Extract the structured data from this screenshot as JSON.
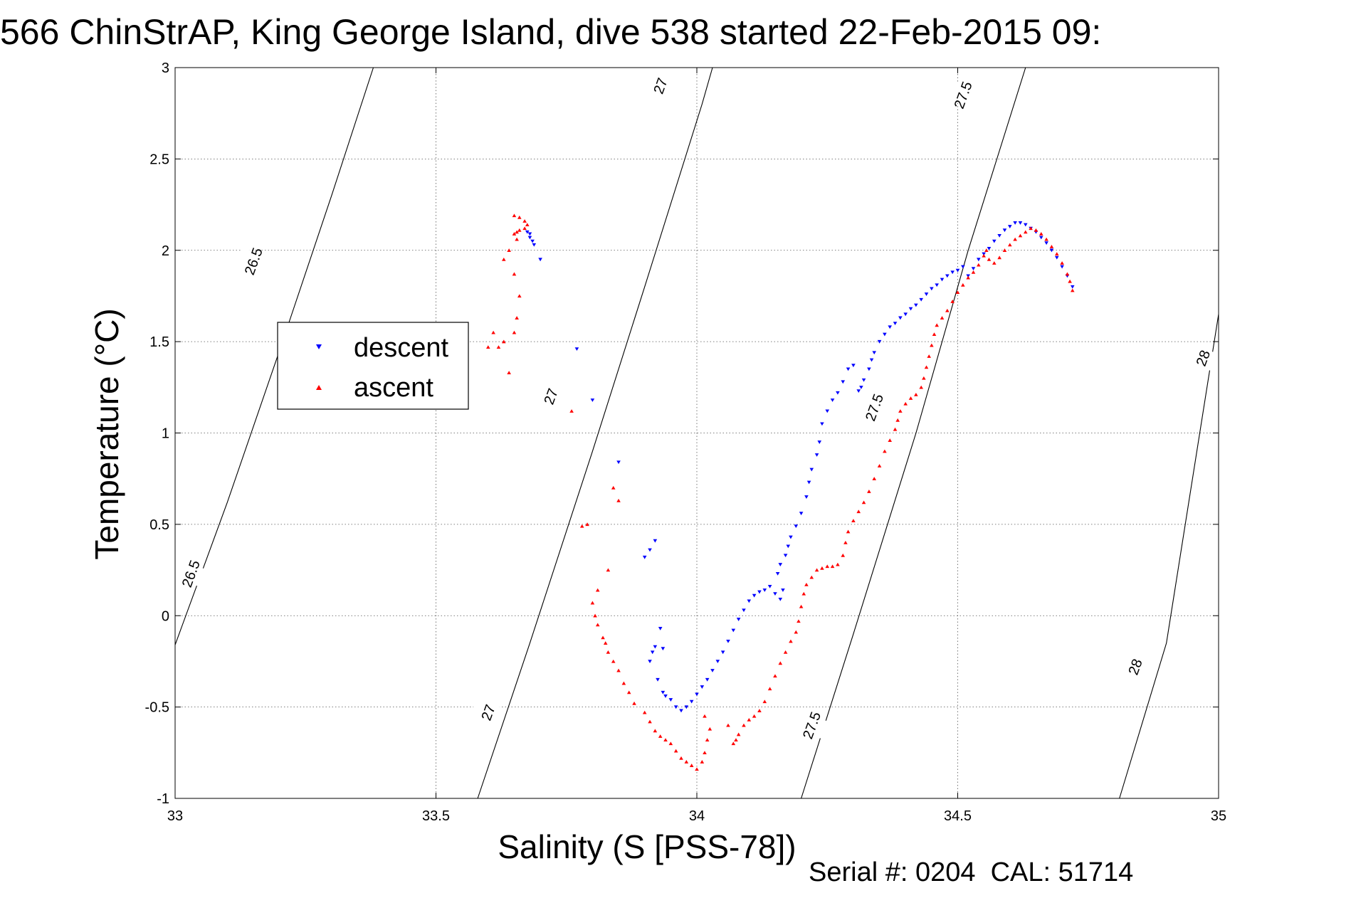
{
  "chart_data": {
    "type": "scatter",
    "title": "566 ChinStrAP, King George Island, dive 538 started 22-Feb-2015 09:",
    "xlabel": "Salinity (S [PSS-78])",
    "ylabel": "Temperature (°C)",
    "xlim": [
      33,
      35
    ],
    "ylim": [
      -1,
      3
    ],
    "x_ticks": [
      33,
      33.5,
      34,
      34.5,
      35
    ],
    "x_tick_labels": [
      "33",
      "33.5",
      "34",
      "34.5",
      "35"
    ],
    "y_ticks": [
      -1,
      -0.5,
      0,
      0.5,
      1,
      1.5,
      2,
      2.5,
      3
    ],
    "y_tick_labels": [
      "-1",
      "-0.5",
      "0",
      "0.5",
      "1",
      "1.5",
      "2",
      "2.5",
      "3"
    ],
    "grid": true,
    "legend_placement": "left",
    "footer": "Serial #: 0204  CAL: 51714",
    "contours": [
      {
        "level": "26.5",
        "points": [
          [
            33.0,
            -0.16
          ],
          [
            33.1,
            0.62
          ],
          [
            33.2,
            1.45
          ],
          [
            33.3,
            2.3
          ],
          [
            33.38,
            3.0
          ]
        ]
      },
      {
        "level": "27",
        "points": [
          [
            33.58,
            -1.0
          ],
          [
            33.68,
            -0.15
          ],
          [
            33.8,
            0.9
          ],
          [
            33.9,
            1.8
          ],
          [
            34.01,
            2.8
          ],
          [
            34.03,
            3.0
          ]
        ]
      },
      {
        "level": "27.5",
        "points": [
          [
            34.2,
            -1.0
          ],
          [
            34.3,
            -0.1
          ],
          [
            34.42,
            1.0
          ],
          [
            34.52,
            2.0
          ],
          [
            34.63,
            3.0
          ]
        ]
      },
      {
        "level": "28",
        "points": [
          [
            34.81,
            -1.0
          ],
          [
            34.9,
            -0.15
          ],
          [
            35.0,
            1.65
          ]
        ]
      }
    ],
    "contour_labels": [
      {
        "text": "26.5",
        "x": 33.15,
        "y": 1.94
      },
      {
        "text": "26.5",
        "x": 33.03,
        "y": 0.23
      },
      {
        "text": "27",
        "x": 33.93,
        "y": 2.9
      },
      {
        "text": "27",
        "x": 33.72,
        "y": 1.2
      },
      {
        "text": "27",
        "x": 33.6,
        "y": -0.53
      },
      {
        "text": "27.5",
        "x": 34.51,
        "y": 2.85
      },
      {
        "text": "27.5",
        "x": 34.34,
        "y": 1.14
      },
      {
        "text": "27.5",
        "x": 34.22,
        "y": -0.6
      },
      {
        "text": "28",
        "x": 34.97,
        "y": 1.41
      },
      {
        "text": "28",
        "x": 34.84,
        "y": -0.28
      }
    ],
    "series": [
      {
        "name": "descent",
        "color": "#0000ff",
        "marker": "triangle-down",
        "points": [
          [
            33.68,
            2.09
          ],
          [
            33.675,
            2.1
          ],
          [
            33.68,
            2.07
          ],
          [
            33.685,
            2.05
          ],
          [
            33.688,
            2.03
          ],
          [
            33.7,
            1.95
          ],
          [
            33.77,
            1.46
          ],
          [
            33.8,
            1.18
          ],
          [
            33.85,
            0.84
          ],
          [
            33.92,
            0.41
          ],
          [
            33.91,
            0.36
          ],
          [
            33.9,
            0.32
          ],
          [
            33.93,
            -0.07
          ],
          [
            33.92,
            -0.17
          ],
          [
            33.935,
            -0.18
          ],
          [
            33.915,
            -0.2
          ],
          [
            33.91,
            -0.25
          ],
          [
            33.925,
            -0.35
          ],
          [
            33.935,
            -0.42
          ],
          [
            33.94,
            -0.44
          ],
          [
            33.95,
            -0.46
          ],
          [
            33.96,
            -0.5
          ],
          [
            33.97,
            -0.52
          ],
          [
            33.98,
            -0.5
          ],
          [
            33.99,
            -0.47
          ],
          [
            34.0,
            -0.43
          ],
          [
            34.01,
            -0.39
          ],
          [
            34.02,
            -0.35
          ],
          [
            34.03,
            -0.3
          ],
          [
            34.04,
            -0.25
          ],
          [
            34.05,
            -0.2
          ],
          [
            34.06,
            -0.14
          ],
          [
            34.07,
            -0.08
          ],
          [
            34.08,
            -0.02
          ],
          [
            34.09,
            0.03
          ],
          [
            34.1,
            0.08
          ],
          [
            34.11,
            0.11
          ],
          [
            34.12,
            0.13
          ],
          [
            34.13,
            0.14
          ],
          [
            34.14,
            0.16
          ],
          [
            34.15,
            0.12
          ],
          [
            34.16,
            0.09
          ],
          [
            34.165,
            0.14
          ],
          [
            34.155,
            0.23
          ],
          [
            34.16,
            0.28
          ],
          [
            34.17,
            0.33
          ],
          [
            34.175,
            0.38
          ],
          [
            34.18,
            0.43
          ],
          [
            34.19,
            0.49
          ],
          [
            34.2,
            0.56
          ],
          [
            34.21,
            0.65
          ],
          [
            34.215,
            0.73
          ],
          [
            34.22,
            0.8
          ],
          [
            34.23,
            0.88
          ],
          [
            34.235,
            0.95
          ],
          [
            34.24,
            1.05
          ],
          [
            34.25,
            1.12
          ],
          [
            34.26,
            1.18
          ],
          [
            34.27,
            1.22
          ],
          [
            34.28,
            1.28
          ],
          [
            34.29,
            1.35
          ],
          [
            34.3,
            1.37
          ],
          [
            34.31,
            1.23
          ],
          [
            34.315,
            1.25
          ],
          [
            34.32,
            1.29
          ],
          [
            34.33,
            1.35
          ],
          [
            34.335,
            1.4
          ],
          [
            34.34,
            1.44
          ],
          [
            34.35,
            1.5
          ],
          [
            34.36,
            1.54
          ],
          [
            34.37,
            1.58
          ],
          [
            34.38,
            1.6
          ],
          [
            34.39,
            1.63
          ],
          [
            34.4,
            1.65
          ],
          [
            34.41,
            1.68
          ],
          [
            34.42,
            1.7
          ],
          [
            34.43,
            1.73
          ],
          [
            34.44,
            1.76
          ],
          [
            34.45,
            1.79
          ],
          [
            34.46,
            1.81
          ],
          [
            34.47,
            1.84
          ],
          [
            34.48,
            1.86
          ],
          [
            34.49,
            1.88
          ],
          [
            34.5,
            1.89
          ],
          [
            34.51,
            1.91
          ],
          [
            34.52,
            1.86
          ],
          [
            34.53,
            1.9
          ],
          [
            34.54,
            1.95
          ],
          [
            34.55,
            1.98
          ],
          [
            34.56,
            2.01
          ],
          [
            34.57,
            2.05
          ],
          [
            34.58,
            2.08
          ],
          [
            34.59,
            2.11
          ],
          [
            34.6,
            2.13
          ],
          [
            34.61,
            2.15
          ],
          [
            34.62,
            2.15
          ],
          [
            34.63,
            2.14
          ],
          [
            34.64,
            2.12
          ],
          [
            34.65,
            2.1
          ],
          [
            34.66,
            2.07
          ],
          [
            34.67,
            2.04
          ],
          [
            34.68,
            2.0
          ],
          [
            34.69,
            1.96
          ],
          [
            34.7,
            1.91
          ],
          [
            34.71,
            1.86
          ],
          [
            34.72,
            1.8
          ]
        ]
      },
      {
        "name": "ascent",
        "color": "#ff0000",
        "marker": "triangle-up",
        "points": [
          [
            33.65,
            2.19
          ],
          [
            33.66,
            2.18
          ],
          [
            33.67,
            2.16
          ],
          [
            33.675,
            2.14
          ],
          [
            33.67,
            2.12
          ],
          [
            33.66,
            2.11
          ],
          [
            33.655,
            2.1
          ],
          [
            33.65,
            2.09
          ],
          [
            33.655,
            2.06
          ],
          [
            33.64,
            2.0
          ],
          [
            33.63,
            1.95
          ],
          [
            33.65,
            1.87
          ],
          [
            33.66,
            1.75
          ],
          [
            33.655,
            1.63
          ],
          [
            33.65,
            1.55
          ],
          [
            33.63,
            1.5
          ],
          [
            33.62,
            1.47
          ],
          [
            33.61,
            1.55
          ],
          [
            33.6,
            1.47
          ],
          [
            33.64,
            1.33
          ],
          [
            33.76,
            1.12
          ],
          [
            33.78,
            0.49
          ],
          [
            33.79,
            0.5
          ],
          [
            33.84,
            0.7
          ],
          [
            33.85,
            0.63
          ],
          [
            33.83,
            0.25
          ],
          [
            33.81,
            0.14
          ],
          [
            33.8,
            0.07
          ],
          [
            33.805,
            0.0
          ],
          [
            33.81,
            -0.05
          ],
          [
            33.82,
            -0.12
          ],
          [
            33.825,
            -0.15
          ],
          [
            33.83,
            -0.2
          ],
          [
            33.84,
            -0.25
          ],
          [
            33.85,
            -0.3
          ],
          [
            33.86,
            -0.37
          ],
          [
            33.87,
            -0.42
          ],
          [
            33.88,
            -0.48
          ],
          [
            33.9,
            -0.53
          ],
          [
            33.91,
            -0.58
          ],
          [
            33.92,
            -0.63
          ],
          [
            33.93,
            -0.66
          ],
          [
            33.94,
            -0.68
          ],
          [
            33.95,
            -0.7
          ],
          [
            33.96,
            -0.74
          ],
          [
            33.97,
            -0.78
          ],
          [
            33.98,
            -0.8
          ],
          [
            33.99,
            -0.82
          ],
          [
            34.0,
            -0.84
          ],
          [
            34.01,
            -0.8
          ],
          [
            34.015,
            -0.75
          ],
          [
            34.02,
            -0.68
          ],
          [
            34.025,
            -0.62
          ],
          [
            34.015,
            -0.55
          ],
          [
            34.06,
            -0.6
          ],
          [
            34.07,
            -0.7
          ],
          [
            34.075,
            -0.68
          ],
          [
            34.08,
            -0.65
          ],
          [
            34.09,
            -0.6
          ],
          [
            34.1,
            -0.57
          ],
          [
            34.11,
            -0.55
          ],
          [
            34.12,
            -0.52
          ],
          [
            34.13,
            -0.47
          ],
          [
            34.14,
            -0.4
          ],
          [
            34.15,
            -0.33
          ],
          [
            34.16,
            -0.26
          ],
          [
            34.17,
            -0.2
          ],
          [
            34.18,
            -0.14
          ],
          [
            34.19,
            -0.09
          ],
          [
            34.195,
            -0.03
          ],
          [
            34.2,
            0.05
          ],
          [
            34.205,
            0.12
          ],
          [
            34.21,
            0.17
          ],
          [
            34.22,
            0.21
          ],
          [
            34.23,
            0.25
          ],
          [
            34.24,
            0.26
          ],
          [
            34.25,
            0.27
          ],
          [
            34.26,
            0.27
          ],
          [
            34.27,
            0.28
          ],
          [
            34.28,
            0.33
          ],
          [
            34.285,
            0.4
          ],
          [
            34.29,
            0.46
          ],
          [
            34.3,
            0.52
          ],
          [
            34.31,
            0.57
          ],
          [
            34.32,
            0.62
          ],
          [
            34.33,
            0.68
          ],
          [
            34.34,
            0.75
          ],
          [
            34.35,
            0.82
          ],
          [
            34.36,
            0.9
          ],
          [
            34.37,
            0.96
          ],
          [
            34.38,
            1.02
          ],
          [
            34.385,
            1.07
          ],
          [
            34.39,
            1.12
          ],
          [
            34.4,
            1.16
          ],
          [
            34.41,
            1.19
          ],
          [
            34.42,
            1.21
          ],
          [
            34.43,
            1.25
          ],
          [
            34.435,
            1.3
          ],
          [
            34.44,
            1.36
          ],
          [
            34.445,
            1.42
          ],
          [
            34.45,
            1.48
          ],
          [
            34.455,
            1.54
          ],
          [
            34.46,
            1.59
          ],
          [
            34.47,
            1.63
          ],
          [
            34.48,
            1.67
          ],
          [
            34.49,
            1.72
          ],
          [
            34.5,
            1.77
          ],
          [
            34.51,
            1.81
          ],
          [
            34.52,
            1.85
          ],
          [
            34.53,
            1.88
          ],
          [
            34.54,
            1.92
          ],
          [
            34.55,
            1.97
          ],
          [
            34.555,
            2.0
          ],
          [
            34.56,
            1.95
          ],
          [
            34.57,
            1.93
          ],
          [
            34.58,
            1.96
          ],
          [
            34.59,
            2.0
          ],
          [
            34.6,
            2.03
          ],
          [
            34.61,
            2.06
          ],
          [
            34.62,
            2.08
          ],
          [
            34.63,
            2.1
          ],
          [
            34.64,
            2.12
          ],
          [
            34.65,
            2.11
          ],
          [
            34.66,
            2.09
          ],
          [
            34.67,
            2.06
          ],
          [
            34.68,
            2.02
          ],
          [
            34.69,
            1.98
          ],
          [
            34.7,
            1.93
          ],
          [
            34.71,
            1.87
          ],
          [
            34.715,
            1.83
          ],
          [
            34.72,
            1.78
          ]
        ]
      }
    ]
  }
}
